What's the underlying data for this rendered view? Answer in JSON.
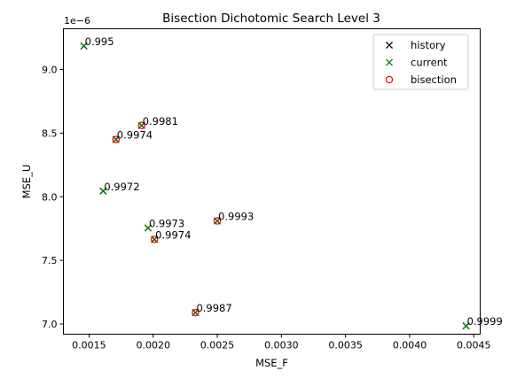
{
  "chart_data": {
    "type": "scatter",
    "title": "Bisection Dichotomic Search Level 3",
    "xlabel": "MSE_F",
    "ylabel": "MSE_U",
    "y_offset_label": "1e−6",
    "xlim": [
      0.0013,
      0.00455
    ],
    "ylim": [
      6.92,
      9.32
    ],
    "x_ticks": [
      0.0015,
      0.002,
      0.0025,
      0.003,
      0.0035,
      0.004,
      0.0045
    ],
    "x_tick_labels": [
      "0.0015",
      "0.0020",
      "0.0025",
      "0.0030",
      "0.0035",
      "0.0040",
      "0.0045"
    ],
    "y_ticks": [
      7.0,
      7.5,
      8.0,
      8.5,
      9.0
    ],
    "y_tick_labels": [
      "7.0",
      "7.5",
      "8.0",
      "8.5",
      "9.0"
    ],
    "grid": false,
    "legend_position": "top-right",
    "legend": [
      {
        "label": "history",
        "marker": "x",
        "color": "#000000"
      },
      {
        "label": "current",
        "marker": "x",
        "color": "#008000"
      },
      {
        "label": "bisection",
        "marker": "o",
        "color": "#ff0000"
      }
    ],
    "series": [
      {
        "name": "history",
        "marker": "x",
        "color": "#000000",
        "points": [
          {
            "x": 0.00146,
            "y": 9.185
          },
          {
            "x": 0.00191,
            "y": 8.56
          },
          {
            "x": 0.00171,
            "y": 8.45
          },
          {
            "x": 0.00161,
            "y": 8.045
          },
          {
            "x": 0.0025,
            "y": 7.81
          },
          {
            "x": 0.00196,
            "y": 7.755
          },
          {
            "x": 0.00201,
            "y": 7.665
          },
          {
            "x": 0.00233,
            "y": 7.09
          },
          {
            "x": 0.00444,
            "y": 6.985
          }
        ]
      },
      {
        "name": "current",
        "marker": "x",
        "color": "#008000",
        "points": [
          {
            "x": 0.00146,
            "y": 9.185
          },
          {
            "x": 0.00191,
            "y": 8.56
          },
          {
            "x": 0.00171,
            "y": 8.45
          },
          {
            "x": 0.00161,
            "y": 8.045
          },
          {
            "x": 0.0025,
            "y": 7.81
          },
          {
            "x": 0.00196,
            "y": 7.755
          },
          {
            "x": 0.00201,
            "y": 7.665
          },
          {
            "x": 0.00233,
            "y": 7.09
          },
          {
            "x": 0.00444,
            "y": 6.985
          }
        ]
      },
      {
        "name": "bisection",
        "marker": "o",
        "color": "#ff0000",
        "points": [
          {
            "x": 0.00191,
            "y": 8.56
          },
          {
            "x": 0.00171,
            "y": 8.45
          },
          {
            "x": 0.0025,
            "y": 7.81
          },
          {
            "x": 0.00201,
            "y": 7.665
          },
          {
            "x": 0.00233,
            "y": 7.09
          }
        ]
      }
    ],
    "annotations": [
      {
        "x": 0.00146,
        "y": 9.185,
        "text": "0.995"
      },
      {
        "x": 0.00191,
        "y": 8.56,
        "text": "0.9981"
      },
      {
        "x": 0.00171,
        "y": 8.45,
        "text": "0.9974"
      },
      {
        "x": 0.00161,
        "y": 8.045,
        "text": "0.9972"
      },
      {
        "x": 0.0025,
        "y": 7.81,
        "text": "0.9993"
      },
      {
        "x": 0.00196,
        "y": 7.755,
        "text": "0.9973"
      },
      {
        "x": 0.00201,
        "y": 7.665,
        "text": "0.9974"
      },
      {
        "x": 0.00233,
        "y": 7.09,
        "text": "0.9987"
      },
      {
        "x": 0.00444,
        "y": 6.985,
        "text": "0.9999"
      }
    ]
  }
}
